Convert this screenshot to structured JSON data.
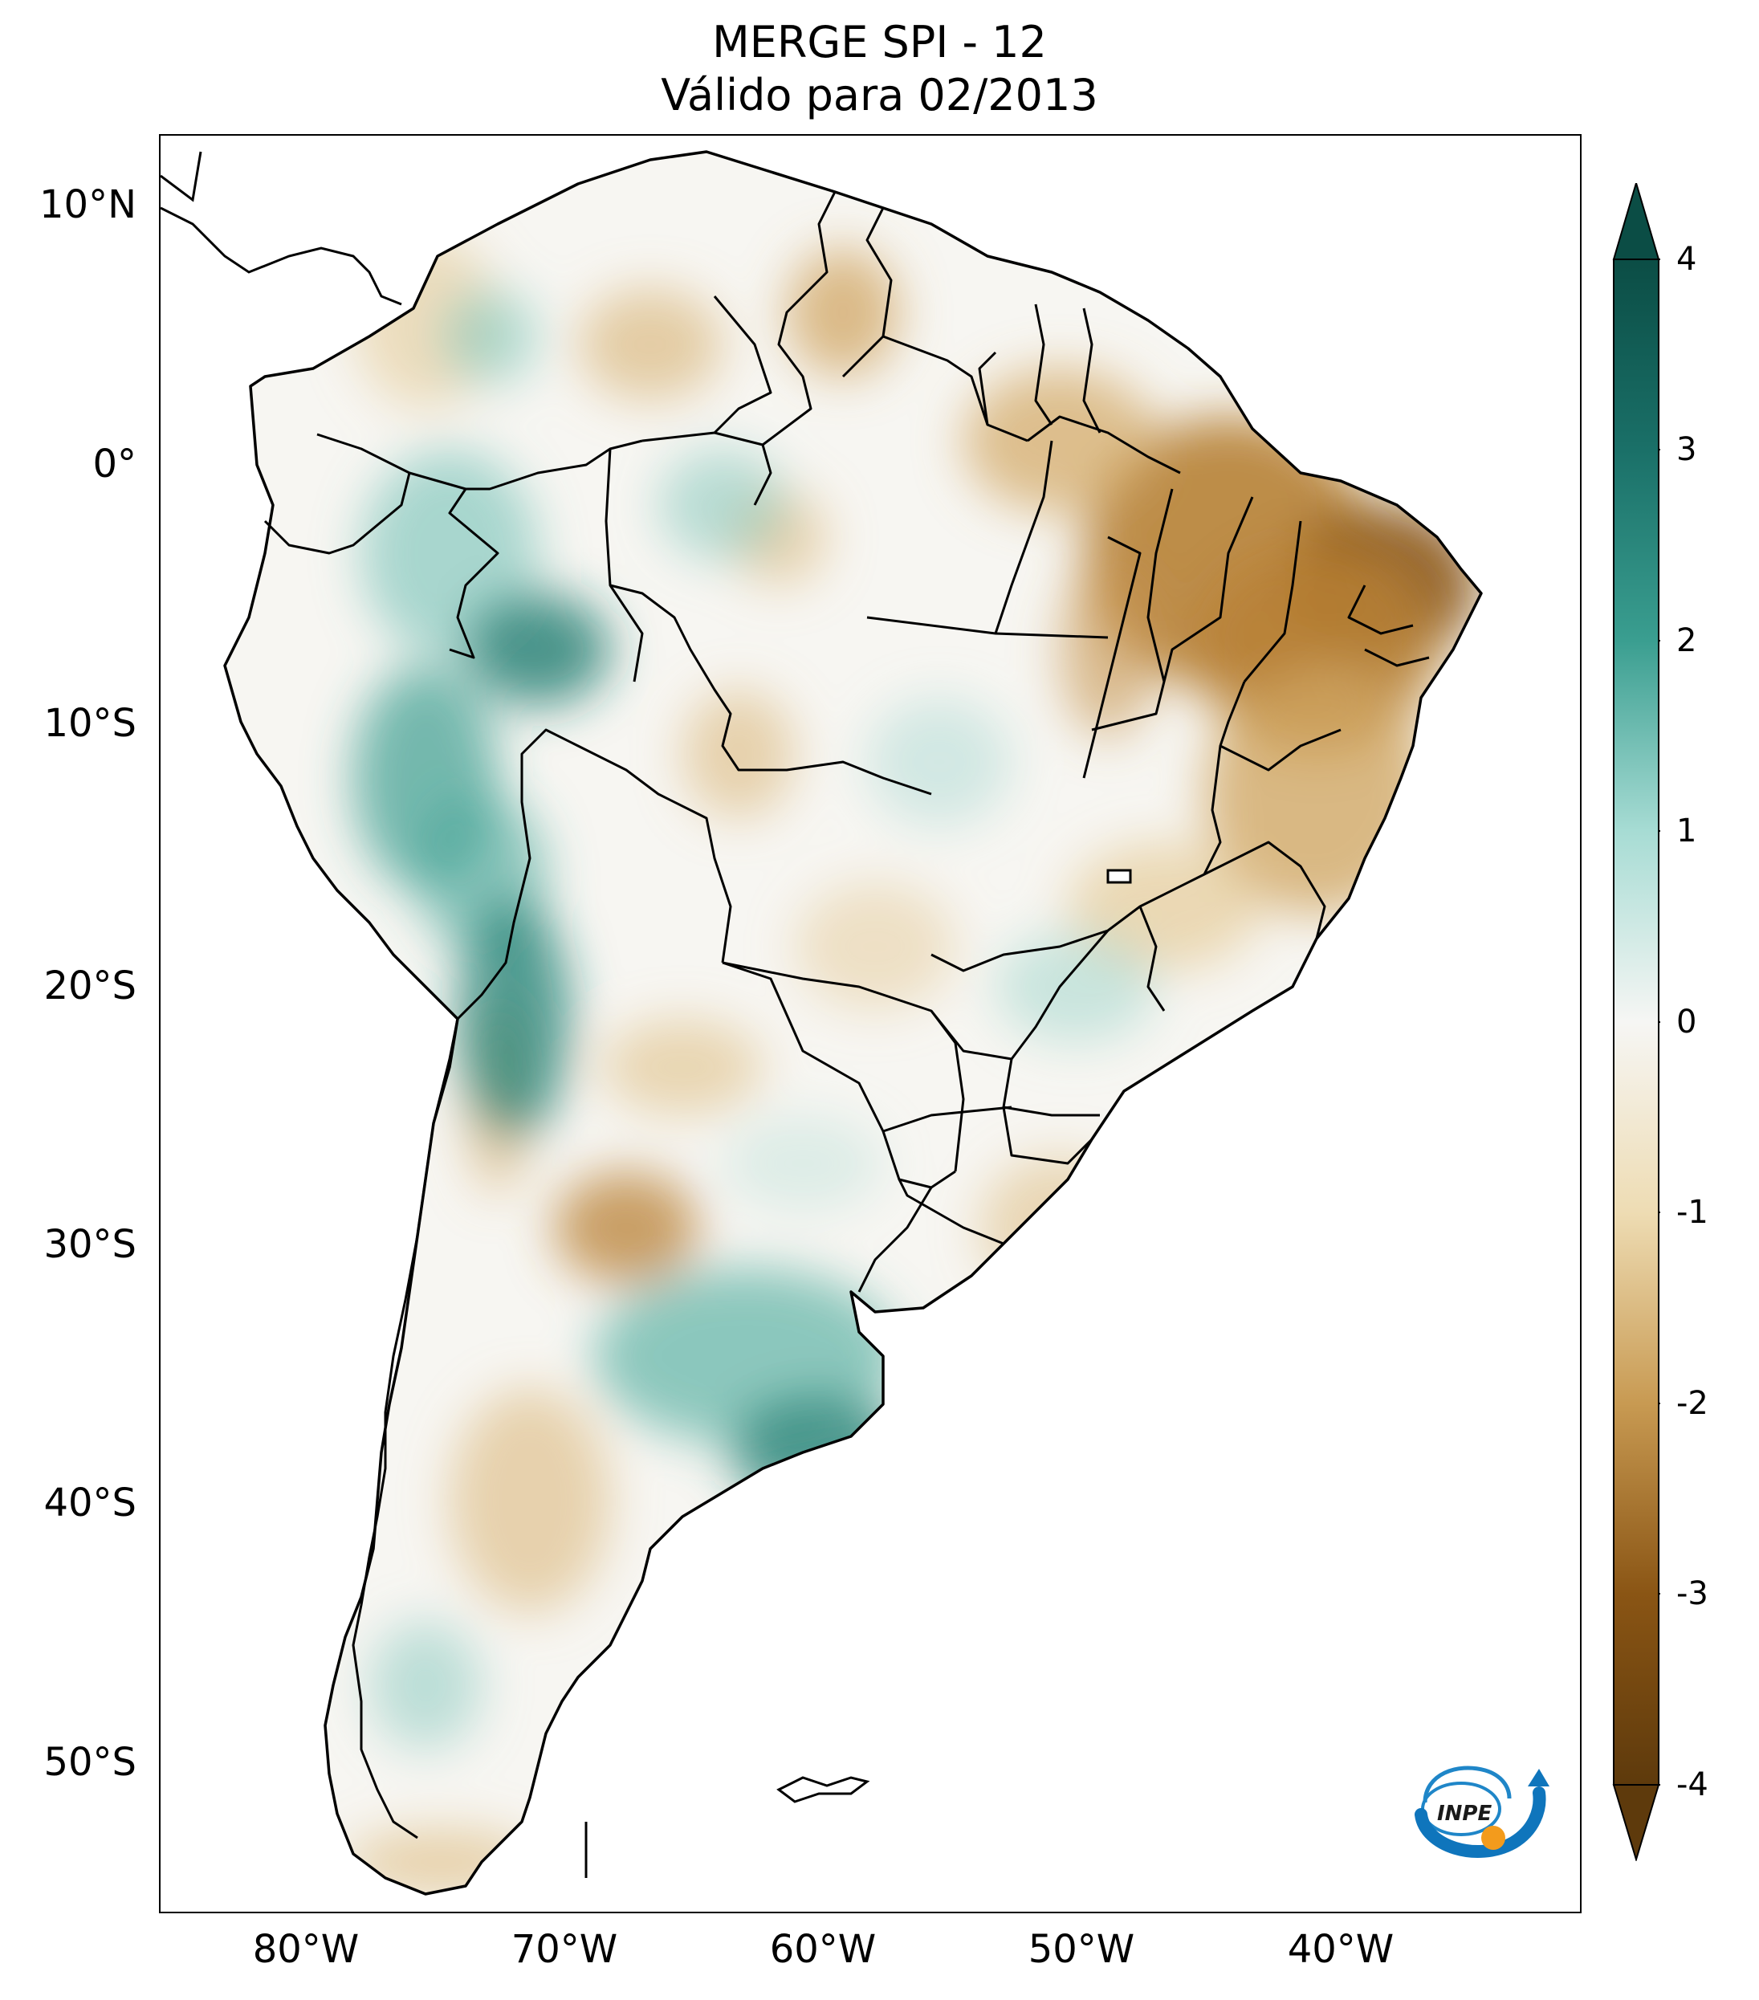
{
  "title": {
    "line1": "MERGE   SPI - 12",
    "line2": "Válido para 02/2013"
  },
  "map": {
    "lat_labels": [
      "10°N",
      "0°",
      "10°S",
      "20°S",
      "30°S",
      "40°S",
      "50°S"
    ],
    "lon_labels": [
      "80°W",
      "70°W",
      "60°W",
      "50°W",
      "40°W"
    ]
  },
  "colorbar": {
    "ticks": [
      "4",
      "3",
      "2",
      "1",
      "0",
      "-1",
      "-2",
      "-3",
      "-4"
    ],
    "range": [
      -4,
      4
    ],
    "colors": {
      "wet_max": "#0b4d45",
      "wet_mid": "#3a9e90",
      "wet_light": "#a7dcd4",
      "neutral": "#f6f6f4",
      "dry_light": "#eedcb3",
      "dry_mid": "#c89a52",
      "dry_max": "#5e3a0c"
    }
  },
  "logo": {
    "text": "INPE"
  }
}
